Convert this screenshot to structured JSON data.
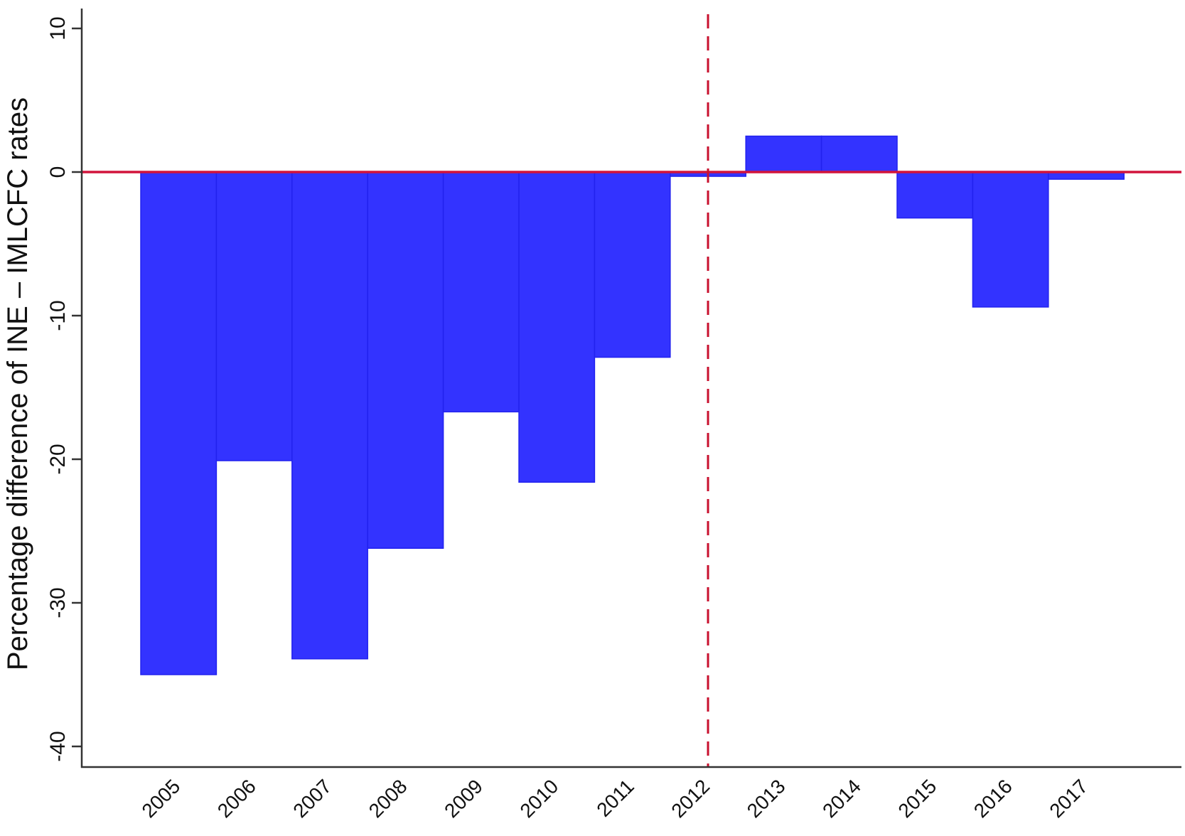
{
  "chart_data": {
    "type": "bar",
    "title": "",
    "xlabel": "",
    "ylabel": "Percentage difference of INE – IMLCFC rates",
    "categories": [
      "2005",
      "2006",
      "2007",
      "2008",
      "2009",
      "2010",
      "2011",
      "2012",
      "2013",
      "2014",
      "2015",
      "2016",
      "2017"
    ],
    "values": [
      -35.0,
      -20.1,
      -33.9,
      -26.2,
      -16.7,
      -21.6,
      -12.9,
      -0.3,
      2.5,
      2.5,
      -3.2,
      -9.4,
      -0.5
    ],
    "ylim": [
      -41.5,
      11.5
    ],
    "yticks": [
      10,
      0,
      -10,
      -20,
      -30,
      -40
    ],
    "reference_line_y": 0,
    "reference_line_x": "2012",
    "grid": false,
    "colors": {
      "bar": "#3333ff",
      "bar_edge": "#2222ee",
      "zero_line": "#d2143c",
      "dashed_line": "#c8102e",
      "axis": "#333333"
    }
  }
}
